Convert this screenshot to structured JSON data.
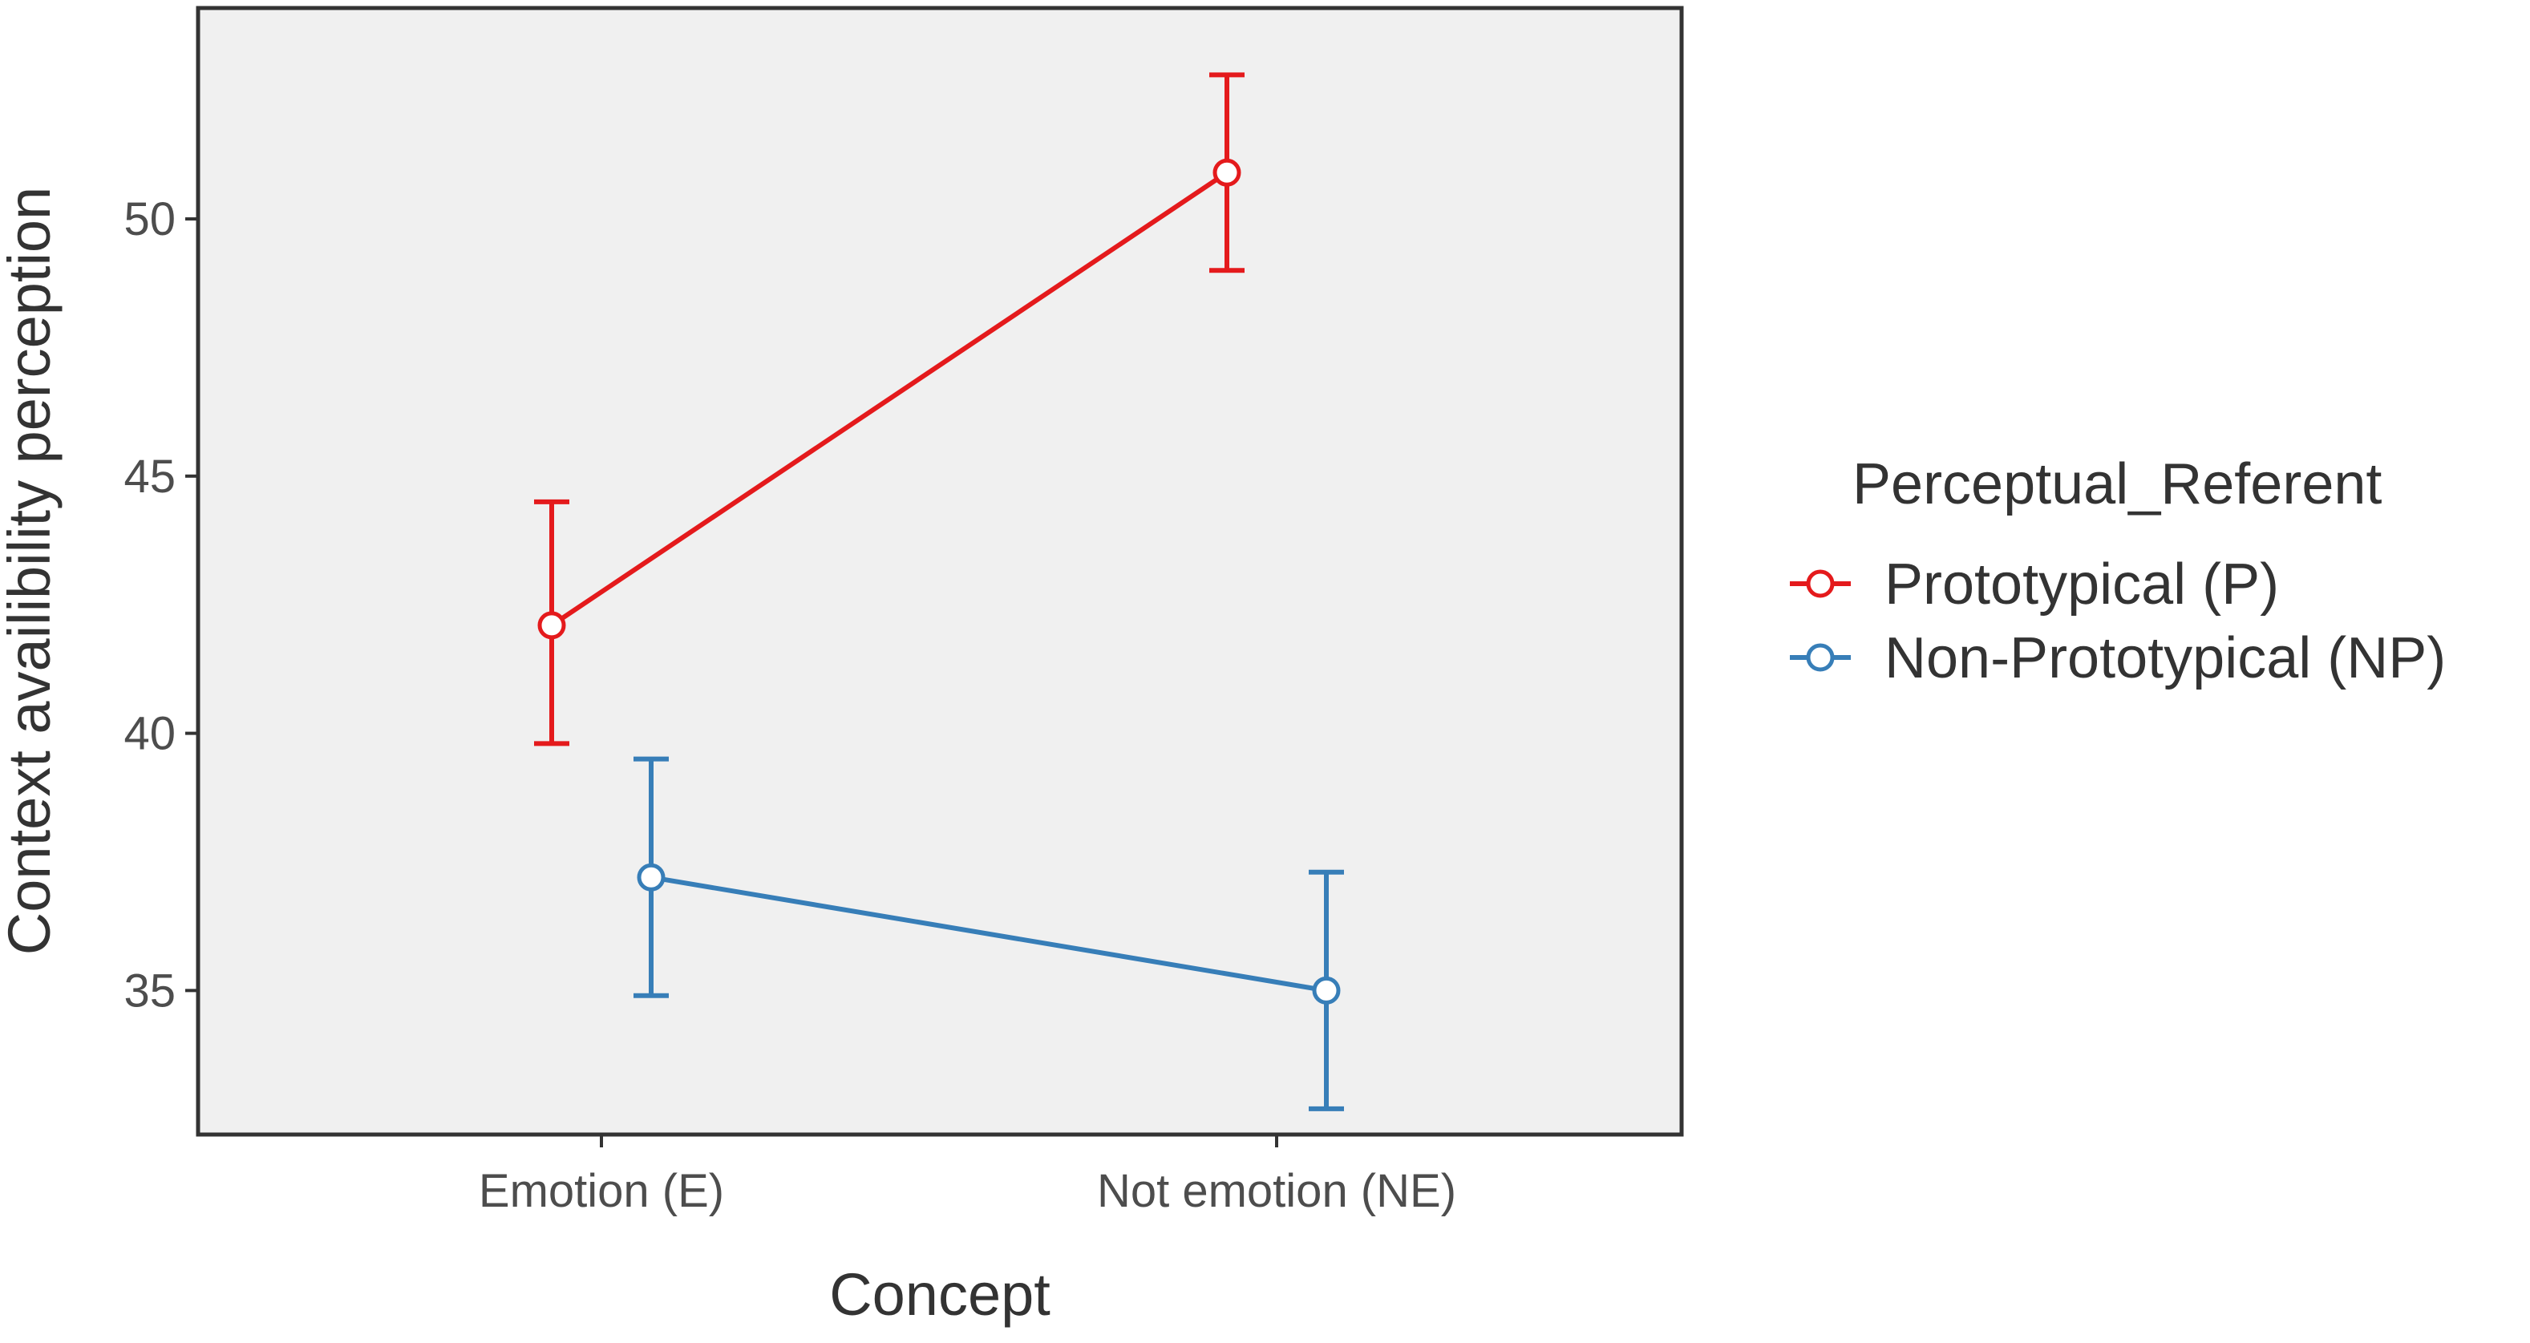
{
  "chart_data": {
    "type": "line",
    "title": "",
    "xlabel": "Concept",
    "ylabel": "Context availibility perception",
    "categories": [
      "Emotion (E)",
      "Not emotion (NE)"
    ],
    "yticks": [
      35,
      40,
      45,
      50
    ],
    "ylim": [
      32.2,
      54.1
    ],
    "grid": false,
    "legend": {
      "title": "Perceptual_Referent",
      "position": "right"
    },
    "series": [
      {
        "name": "Prototypical (P)",
        "color": "#e41a1c",
        "values": [
          42.1,
          50.9
        ],
        "lower": [
          39.8,
          49.0
        ],
        "upper": [
          44.5,
          52.8
        ]
      },
      {
        "name": "Non-Prototypical (NP)",
        "color": "#377eb8",
        "values": [
          37.2,
          35.0
        ],
        "lower": [
          34.9,
          32.7
        ],
        "upper": [
          39.5,
          37.3
        ]
      }
    ]
  }
}
